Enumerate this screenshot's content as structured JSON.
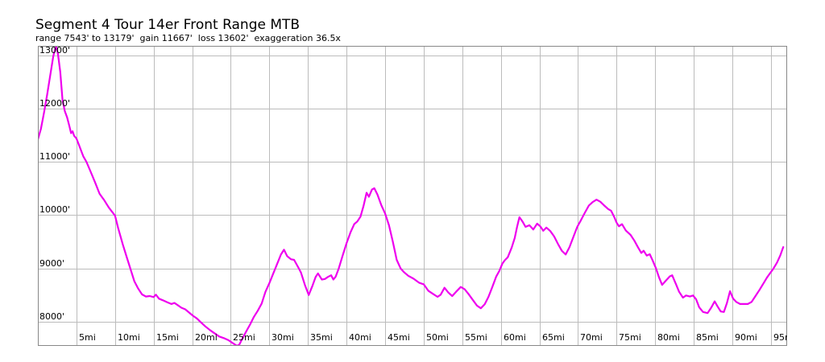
{
  "chart_data": {
    "type": "line",
    "title": "Segment 4 Tour 14er Front Range MTB",
    "subtitle": "range 7543' to 13179'  gain 11667'  loss 13602'  exaggeration 36.5x",
    "stats": {
      "range_min_ft": 7543,
      "range_max_ft": 13179,
      "gain_ft": 11667,
      "loss_ft": 13602,
      "exaggeration": "36.5x"
    },
    "xlim": [
      0,
      97.1
    ],
    "ylim": [
      7543,
      13179
    ],
    "x_ticks": [
      5,
      10,
      15,
      20,
      25,
      30,
      35,
      40,
      45,
      50,
      55,
      60,
      65,
      70,
      75,
      80,
      85,
      90,
      95
    ],
    "y_ticks": [
      8000,
      9000,
      10000,
      11000,
      12000,
      13000
    ],
    "x_unit_suffix": "mi",
    "y_unit_suffix": "'",
    "grid": true,
    "legend": false,
    "line_color": "#EE00EE",
    "series": [
      {
        "name": "elevation-profile",
        "points": [
          [
            0,
            11420
          ],
          [
            0.4,
            11620
          ],
          [
            0.8,
            11930
          ],
          [
            1.2,
            12260
          ],
          [
            1.6,
            12620
          ],
          [
            2.0,
            12990
          ],
          [
            2.35,
            13179
          ],
          [
            2.6,
            13030
          ],
          [
            2.9,
            12690
          ],
          [
            3.2,
            12160
          ],
          [
            3.5,
            11950
          ],
          [
            3.8,
            11830
          ],
          [
            4.1,
            11660
          ],
          [
            4.3,
            11540
          ],
          [
            4.5,
            11575
          ],
          [
            4.7,
            11490
          ],
          [
            5.0,
            11440
          ],
          [
            5.4,
            11290
          ],
          [
            5.9,
            11100
          ],
          [
            6.3,
            11000
          ],
          [
            6.8,
            10830
          ],
          [
            7.4,
            10620
          ],
          [
            8.0,
            10400
          ],
          [
            8.6,
            10280
          ],
          [
            9.2,
            10140
          ],
          [
            10.0,
            9990
          ],
          [
            10.4,
            9760
          ],
          [
            11.0,
            9450
          ],
          [
            11.5,
            9220
          ],
          [
            12.0,
            8990
          ],
          [
            12.5,
            8760
          ],
          [
            13.0,
            8620
          ],
          [
            13.5,
            8510
          ],
          [
            14.0,
            8470
          ],
          [
            14.5,
            8480
          ],
          [
            15.0,
            8460
          ],
          [
            15.3,
            8505
          ],
          [
            15.7,
            8430
          ],
          [
            16.2,
            8400
          ],
          [
            16.8,
            8360
          ],
          [
            17.3,
            8330
          ],
          [
            17.7,
            8350
          ],
          [
            18.1,
            8310
          ],
          [
            18.6,
            8260
          ],
          [
            19.1,
            8230
          ],
          [
            19.6,
            8170
          ],
          [
            20.1,
            8110
          ],
          [
            20.6,
            8060
          ],
          [
            21.1,
            7990
          ],
          [
            21.7,
            7910
          ],
          [
            22.3,
            7840
          ],
          [
            22.9,
            7780
          ],
          [
            23.5,
            7720
          ],
          [
            24.1,
            7690
          ],
          [
            24.7,
            7650
          ],
          [
            25.2,
            7600
          ],
          [
            25.8,
            7545
          ],
          [
            26.1,
            7565
          ],
          [
            26.5,
            7680
          ],
          [
            27.0,
            7815
          ],
          [
            27.5,
            7945
          ],
          [
            28.0,
            8090
          ],
          [
            28.5,
            8205
          ],
          [
            29.0,
            8340
          ],
          [
            29.5,
            8560
          ],
          [
            30.0,
            8720
          ],
          [
            30.5,
            8900
          ],
          [
            31.0,
            9080
          ],
          [
            31.5,
            9260
          ],
          [
            31.9,
            9350
          ],
          [
            32.3,
            9230
          ],
          [
            32.8,
            9170
          ],
          [
            33.2,
            9160
          ],
          [
            33.7,
            9030
          ],
          [
            34.1,
            8920
          ],
          [
            34.6,
            8690
          ],
          [
            35.1,
            8500
          ],
          [
            35.6,
            8680
          ],
          [
            36.0,
            8840
          ],
          [
            36.3,
            8905
          ],
          [
            36.8,
            8790
          ],
          [
            37.2,
            8800
          ],
          [
            37.6,
            8840
          ],
          [
            38.0,
            8870
          ],
          [
            38.3,
            8790
          ],
          [
            38.6,
            8845
          ],
          [
            39.0,
            9000
          ],
          [
            39.5,
            9240
          ],
          [
            40.0,
            9470
          ],
          [
            40.5,
            9670
          ],
          [
            41.0,
            9830
          ],
          [
            41.4,
            9880
          ],
          [
            41.8,
            9970
          ],
          [
            42.2,
            10170
          ],
          [
            42.6,
            10420
          ],
          [
            42.9,
            10345
          ],
          [
            43.3,
            10480
          ],
          [
            43.6,
            10505
          ],
          [
            44.0,
            10390
          ],
          [
            44.5,
            10190
          ],
          [
            45.0,
            10030
          ],
          [
            45.5,
            9810
          ],
          [
            46.0,
            9500
          ],
          [
            46.5,
            9160
          ],
          [
            47.0,
            9000
          ],
          [
            47.4,
            8935
          ],
          [
            48.0,
            8860
          ],
          [
            48.7,
            8805
          ],
          [
            49.4,
            8730
          ],
          [
            50.0,
            8700
          ],
          [
            50.6,
            8580
          ],
          [
            51.2,
            8520
          ],
          [
            51.8,
            8465
          ],
          [
            52.2,
            8505
          ],
          [
            52.7,
            8635
          ],
          [
            53.2,
            8545
          ],
          [
            53.7,
            8480
          ],
          [
            54.2,
            8560
          ],
          [
            54.8,
            8650
          ],
          [
            55.3,
            8610
          ],
          [
            55.8,
            8520
          ],
          [
            56.4,
            8400
          ],
          [
            56.9,
            8300
          ],
          [
            57.4,
            8250
          ],
          [
            57.9,
            8325
          ],
          [
            58.4,
            8465
          ],
          [
            58.9,
            8650
          ],
          [
            59.4,
            8845
          ],
          [
            59.8,
            8950
          ],
          [
            60.2,
            9090
          ],
          [
            60.5,
            9150
          ],
          [
            60.9,
            9210
          ],
          [
            61.4,
            9390
          ],
          [
            61.8,
            9570
          ],
          [
            62.1,
            9780
          ],
          [
            62.4,
            9960
          ],
          [
            62.8,
            9880
          ],
          [
            63.2,
            9780
          ],
          [
            63.7,
            9810
          ],
          [
            64.2,
            9730
          ],
          [
            64.7,
            9840
          ],
          [
            65.1,
            9790
          ],
          [
            65.5,
            9705
          ],
          [
            65.9,
            9765
          ],
          [
            66.4,
            9700
          ],
          [
            66.9,
            9600
          ],
          [
            67.4,
            9460
          ],
          [
            67.9,
            9330
          ],
          [
            68.4,
            9260
          ],
          [
            68.9,
            9400
          ],
          [
            69.4,
            9590
          ],
          [
            69.9,
            9780
          ],
          [
            70.4,
            9910
          ],
          [
            70.9,
            10050
          ],
          [
            71.4,
            10180
          ],
          [
            71.9,
            10245
          ],
          [
            72.4,
            10290
          ],
          [
            72.9,
            10250
          ],
          [
            73.4,
            10180
          ],
          [
            73.9,
            10115
          ],
          [
            74.3,
            10080
          ],
          [
            74.7,
            9960
          ],
          [
            75.0,
            9860
          ],
          [
            75.3,
            9790
          ],
          [
            75.7,
            9830
          ],
          [
            76.2,
            9710
          ],
          [
            76.8,
            9630
          ],
          [
            77.3,
            9520
          ],
          [
            77.8,
            9390
          ],
          [
            78.2,
            9290
          ],
          [
            78.5,
            9330
          ],
          [
            78.9,
            9240
          ],
          [
            79.3,
            9265
          ],
          [
            79.7,
            9140
          ],
          [
            80.1,
            9000
          ],
          [
            80.5,
            8830
          ],
          [
            80.9,
            8690
          ],
          [
            81.4,
            8770
          ],
          [
            81.9,
            8850
          ],
          [
            82.2,
            8870
          ],
          [
            82.7,
            8700
          ],
          [
            83.1,
            8560
          ],
          [
            83.6,
            8450
          ],
          [
            84.0,
            8490
          ],
          [
            84.5,
            8470
          ],
          [
            84.9,
            8490
          ],
          [
            85.3,
            8420
          ],
          [
            85.7,
            8270
          ],
          [
            86.2,
            8180
          ],
          [
            86.8,
            8160
          ],
          [
            87.3,
            8270
          ],
          [
            87.7,
            8380
          ],
          [
            88.1,
            8280
          ],
          [
            88.5,
            8190
          ],
          [
            88.9,
            8180
          ],
          [
            89.3,
            8350
          ],
          [
            89.7,
            8570
          ],
          [
            90.1,
            8430
          ],
          [
            90.5,
            8370
          ],
          [
            91.0,
            8330
          ],
          [
            91.5,
            8330
          ],
          [
            92.0,
            8330
          ],
          [
            92.5,
            8370
          ],
          [
            93.0,
            8480
          ],
          [
            93.5,
            8590
          ],
          [
            94.0,
            8710
          ],
          [
            94.5,
            8830
          ],
          [
            94.9,
            8910
          ],
          [
            95.3,
            8990
          ],
          [
            95.8,
            9110
          ],
          [
            96.2,
            9240
          ],
          [
            96.6,
            9400
          ]
        ]
      }
    ]
  }
}
